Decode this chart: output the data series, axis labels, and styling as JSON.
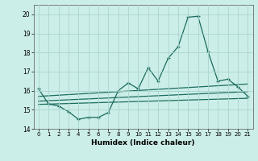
{
  "title": "",
  "xlabel": "Humidex (Indice chaleur)",
  "bg_color": "#cceee8",
  "grid_color": "#aad4ce",
  "line_color": "#1a6b5e",
  "ylim": [
    14.0,
    20.5
  ],
  "xlim": [
    -0.5,
    21.5
  ],
  "yticks": [
    14,
    15,
    16,
    17,
    18,
    19,
    20
  ],
  "xticks": [
    0,
    1,
    2,
    3,
    4,
    5,
    6,
    7,
    8,
    9,
    10,
    11,
    12,
    13,
    14,
    15,
    16,
    17,
    18,
    19,
    20,
    21
  ],
  "lines": [
    {
      "x": [
        0,
        1,
        2,
        3,
        4,
        5,
        6,
        7,
        8,
        9,
        10,
        11,
        12,
        13,
        14,
        15,
        16,
        17,
        18,
        19,
        20,
        21
      ],
      "y": [
        16.1,
        15.3,
        15.2,
        14.9,
        14.5,
        14.6,
        14.6,
        14.85,
        16.0,
        16.4,
        16.1,
        17.2,
        16.5,
        17.7,
        18.3,
        19.85,
        19.9,
        18.05,
        16.5,
        16.6,
        16.2,
        15.7
      ],
      "marker": true
    },
    {
      "x": [
        0,
        21
      ],
      "y": [
        15.7,
        16.35
      ],
      "marker": false
    },
    {
      "x": [
        0,
        21
      ],
      "y": [
        15.45,
        15.95
      ],
      "marker": false
    },
    {
      "x": [
        0,
        21
      ],
      "y": [
        15.28,
        15.6
      ],
      "marker": false
    }
  ]
}
